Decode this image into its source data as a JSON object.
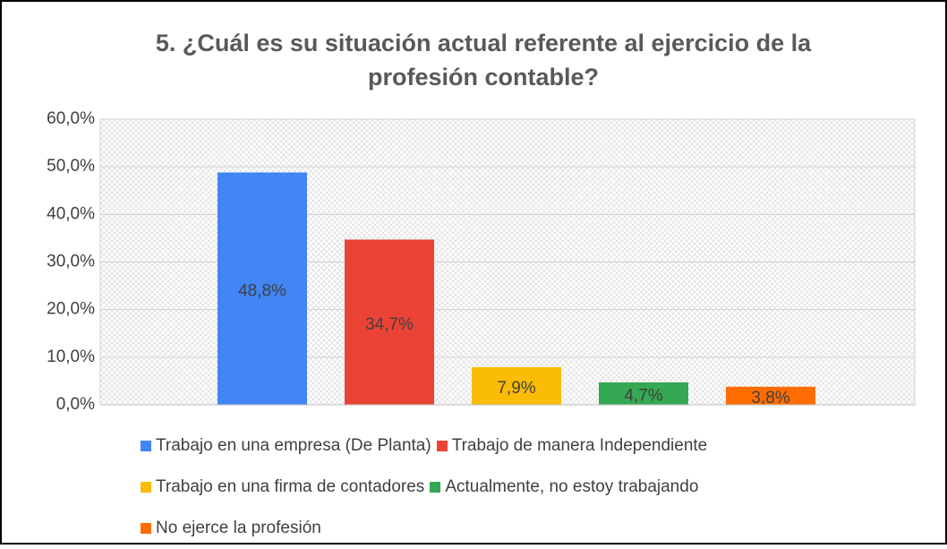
{
  "chart_data": {
    "type": "bar",
    "title": [
      "5. ¿Cuál es su situación actual referente al ejercicio de la",
      "profesión contable?"
    ],
    "series": [
      {
        "name": "Trabajo en una empresa (De Planta)",
        "color": "#4285f4",
        "values": [
          48.8
        ],
        "value_labels": [
          "48,8%"
        ]
      },
      {
        "name": "Trabajo de manera Independiente",
        "color": "#ea4335",
        "values": [
          34.7
        ],
        "value_labels": [
          "34,7%"
        ]
      },
      {
        "name": "Trabajo en una firma de contadores",
        "color": "#fbbc04",
        "values": [
          7.9
        ],
        "value_labels": [
          "7,9%"
        ]
      },
      {
        "name": "Actualmente, no estoy trabajando",
        "color": "#34a853",
        "values": [
          4.7
        ],
        "value_labels": [
          "4,7%"
        ]
      },
      {
        "name": "No ejerce la profesión",
        "color": "#ff6d01",
        "values": [
          3.8
        ],
        "value_labels": [
          "3,8%"
        ]
      }
    ],
    "ylim": [
      0,
      60
    ],
    "yticks": [
      {
        "value": 0,
        "label": "0,0%"
      },
      {
        "value": 10,
        "label": "10,0%"
      },
      {
        "value": 20,
        "label": "20,0%"
      },
      {
        "value": 30,
        "label": "30,0%"
      },
      {
        "value": 40,
        "label": "40,0%"
      },
      {
        "value": 50,
        "label": "50,0%"
      },
      {
        "value": 60,
        "label": "60,0%"
      }
    ],
    "grid": true
  }
}
